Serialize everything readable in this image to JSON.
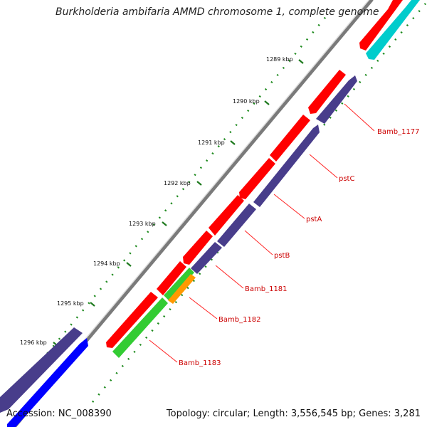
{
  "title": "Burkholderia ambifaria AMMD chromosome 1, complete genome",
  "footer": {
    "accession": "Accession: NC_008390",
    "summary": "Topology: circular; Length: 3,556,545 bp; Genes: 3,281"
  },
  "colors": {
    "forward_cds": "#ff0000",
    "reverse_cds": "#483d8b",
    "gc_skew_green": "#33cc33",
    "orange_feature": "#ff9900",
    "teal_feature": "#00cccc",
    "blue_feature": "#0000ff",
    "label_red": "#cc0000",
    "tick_green": "#2a8a2a"
  },
  "axis": {
    "unit": "kbp",
    "ticks": [
      "1289 kbp",
      "1290 kbp",
      "1291 kbp",
      "1292 kbp",
      "1293 kbp",
      "1294 kbp",
      "1295 kbp",
      "1296 kbp"
    ]
  },
  "gene_labels": [
    "Bamb_1177",
    "pstC",
    "pstA",
    "pstB",
    "Bamb_1181",
    "Bamb_1182",
    "Bamb_1183"
  ]
}
